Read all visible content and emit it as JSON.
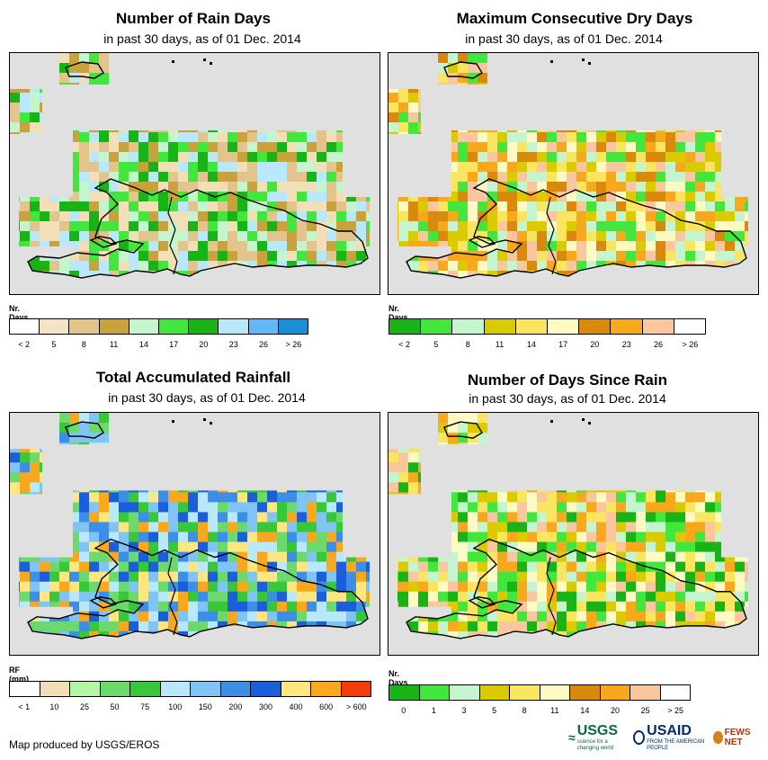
{
  "panels": [
    {
      "id": "rain_days",
      "title": "Number of Rain Days",
      "subtitle": "in past 30 days, as of 01 Dec. 2014",
      "legend_title": "Nr. Days",
      "legend_colors": [
        "#ffffff",
        "#f5e3c6",
        "#e3c48c",
        "#c9a23d",
        "#c4f5cf",
        "#43e63c",
        "#17b317",
        "#b8e8fa",
        "#62b8f5",
        "#1a8fd6"
      ],
      "legend_labels": [
        "< 2",
        "5",
        "8",
        "11",
        "14",
        "17",
        "20",
        "23",
        "26",
        "> 26"
      ],
      "palette": [
        "#f2dfb8",
        "#e3c48c",
        "#c9a23d",
        "#c4f5cf",
        "#43e63c",
        "#17b317",
        "#b8e8fa"
      ]
    },
    {
      "id": "max_dry",
      "title": "Maximum Consecutive Dry Days",
      "subtitle": "in past 30 days, as of 01 Dec. 2014",
      "legend_title": "Nr. Days",
      "legend_colors": [
        "#17b317",
        "#43e63c",
        "#c4f5cf",
        "#d9cb00",
        "#fae560",
        "#fff9c4",
        "#d98a0d",
        "#f7a81c",
        "#fac69e",
        "#ffffff"
      ],
      "legend_labels": [
        "< 2",
        "5",
        "8",
        "11",
        "14",
        "17",
        "20",
        "23",
        "26",
        "> 26"
      ],
      "palette": [
        "#d9cb00",
        "#fae560",
        "#fff9c4",
        "#d98a0d",
        "#f7a81c",
        "#c4f5cf",
        "#43e63c",
        "#fac69e"
      ]
    },
    {
      "id": "total_rf",
      "title": "Total Accumulated Rainfall",
      "subtitle": "in past 30 days, as of 01 Dec. 2014",
      "legend_title": "RF (mm)",
      "legend_colors": [
        "#ffffff",
        "#f2dfb8",
        "#b5f5a6",
        "#6bd96b",
        "#38c738",
        "#b8e8fa",
        "#80c4f5",
        "#3d8fe6",
        "#1a5fd9",
        "#ffe680",
        "#f7a81c",
        "#f23c0a"
      ],
      "legend_labels": [
        "< 1",
        "10",
        "25",
        "50",
        "75",
        "100",
        "150",
        "200",
        "300",
        "400",
        "600",
        "> 600"
      ],
      "palette": [
        "#80c4f5",
        "#3d8fe6",
        "#1a5fd9",
        "#b8e8fa",
        "#38c738",
        "#6bd96b",
        "#ffe680",
        "#f7a81c"
      ]
    },
    {
      "id": "since_rain",
      "title": "Number of Days Since Rain",
      "subtitle": "in past 30 days, as of 01 Dec. 2014",
      "legend_title": "Nr. Days",
      "legend_colors": [
        "#17b317",
        "#43e63c",
        "#c4f5cf",
        "#d9cb00",
        "#fae560",
        "#fff9c4",
        "#d98a0d",
        "#f7a81c",
        "#fac69e",
        "#ffffff"
      ],
      "legend_labels": [
        "0",
        "1",
        "3",
        "5",
        "8",
        "11",
        "14",
        "20",
        "25",
        "> 25"
      ],
      "palette": [
        "#f7a81c",
        "#fae560",
        "#fff9c4",
        "#d9cb00",
        "#43e63c",
        "#17b317",
        "#c4f5cf",
        "#fac69e"
      ]
    }
  ],
  "footer": {
    "credit": "Map produced by USGS/EROS"
  },
  "logos": [
    {
      "name": "USGS",
      "tagline": "science for a changing world"
    },
    {
      "name": "USAID",
      "tagline": "FROM THE AMERICAN PEOPLE"
    },
    {
      "name": "FEWS NET",
      "tagline": ""
    }
  ]
}
